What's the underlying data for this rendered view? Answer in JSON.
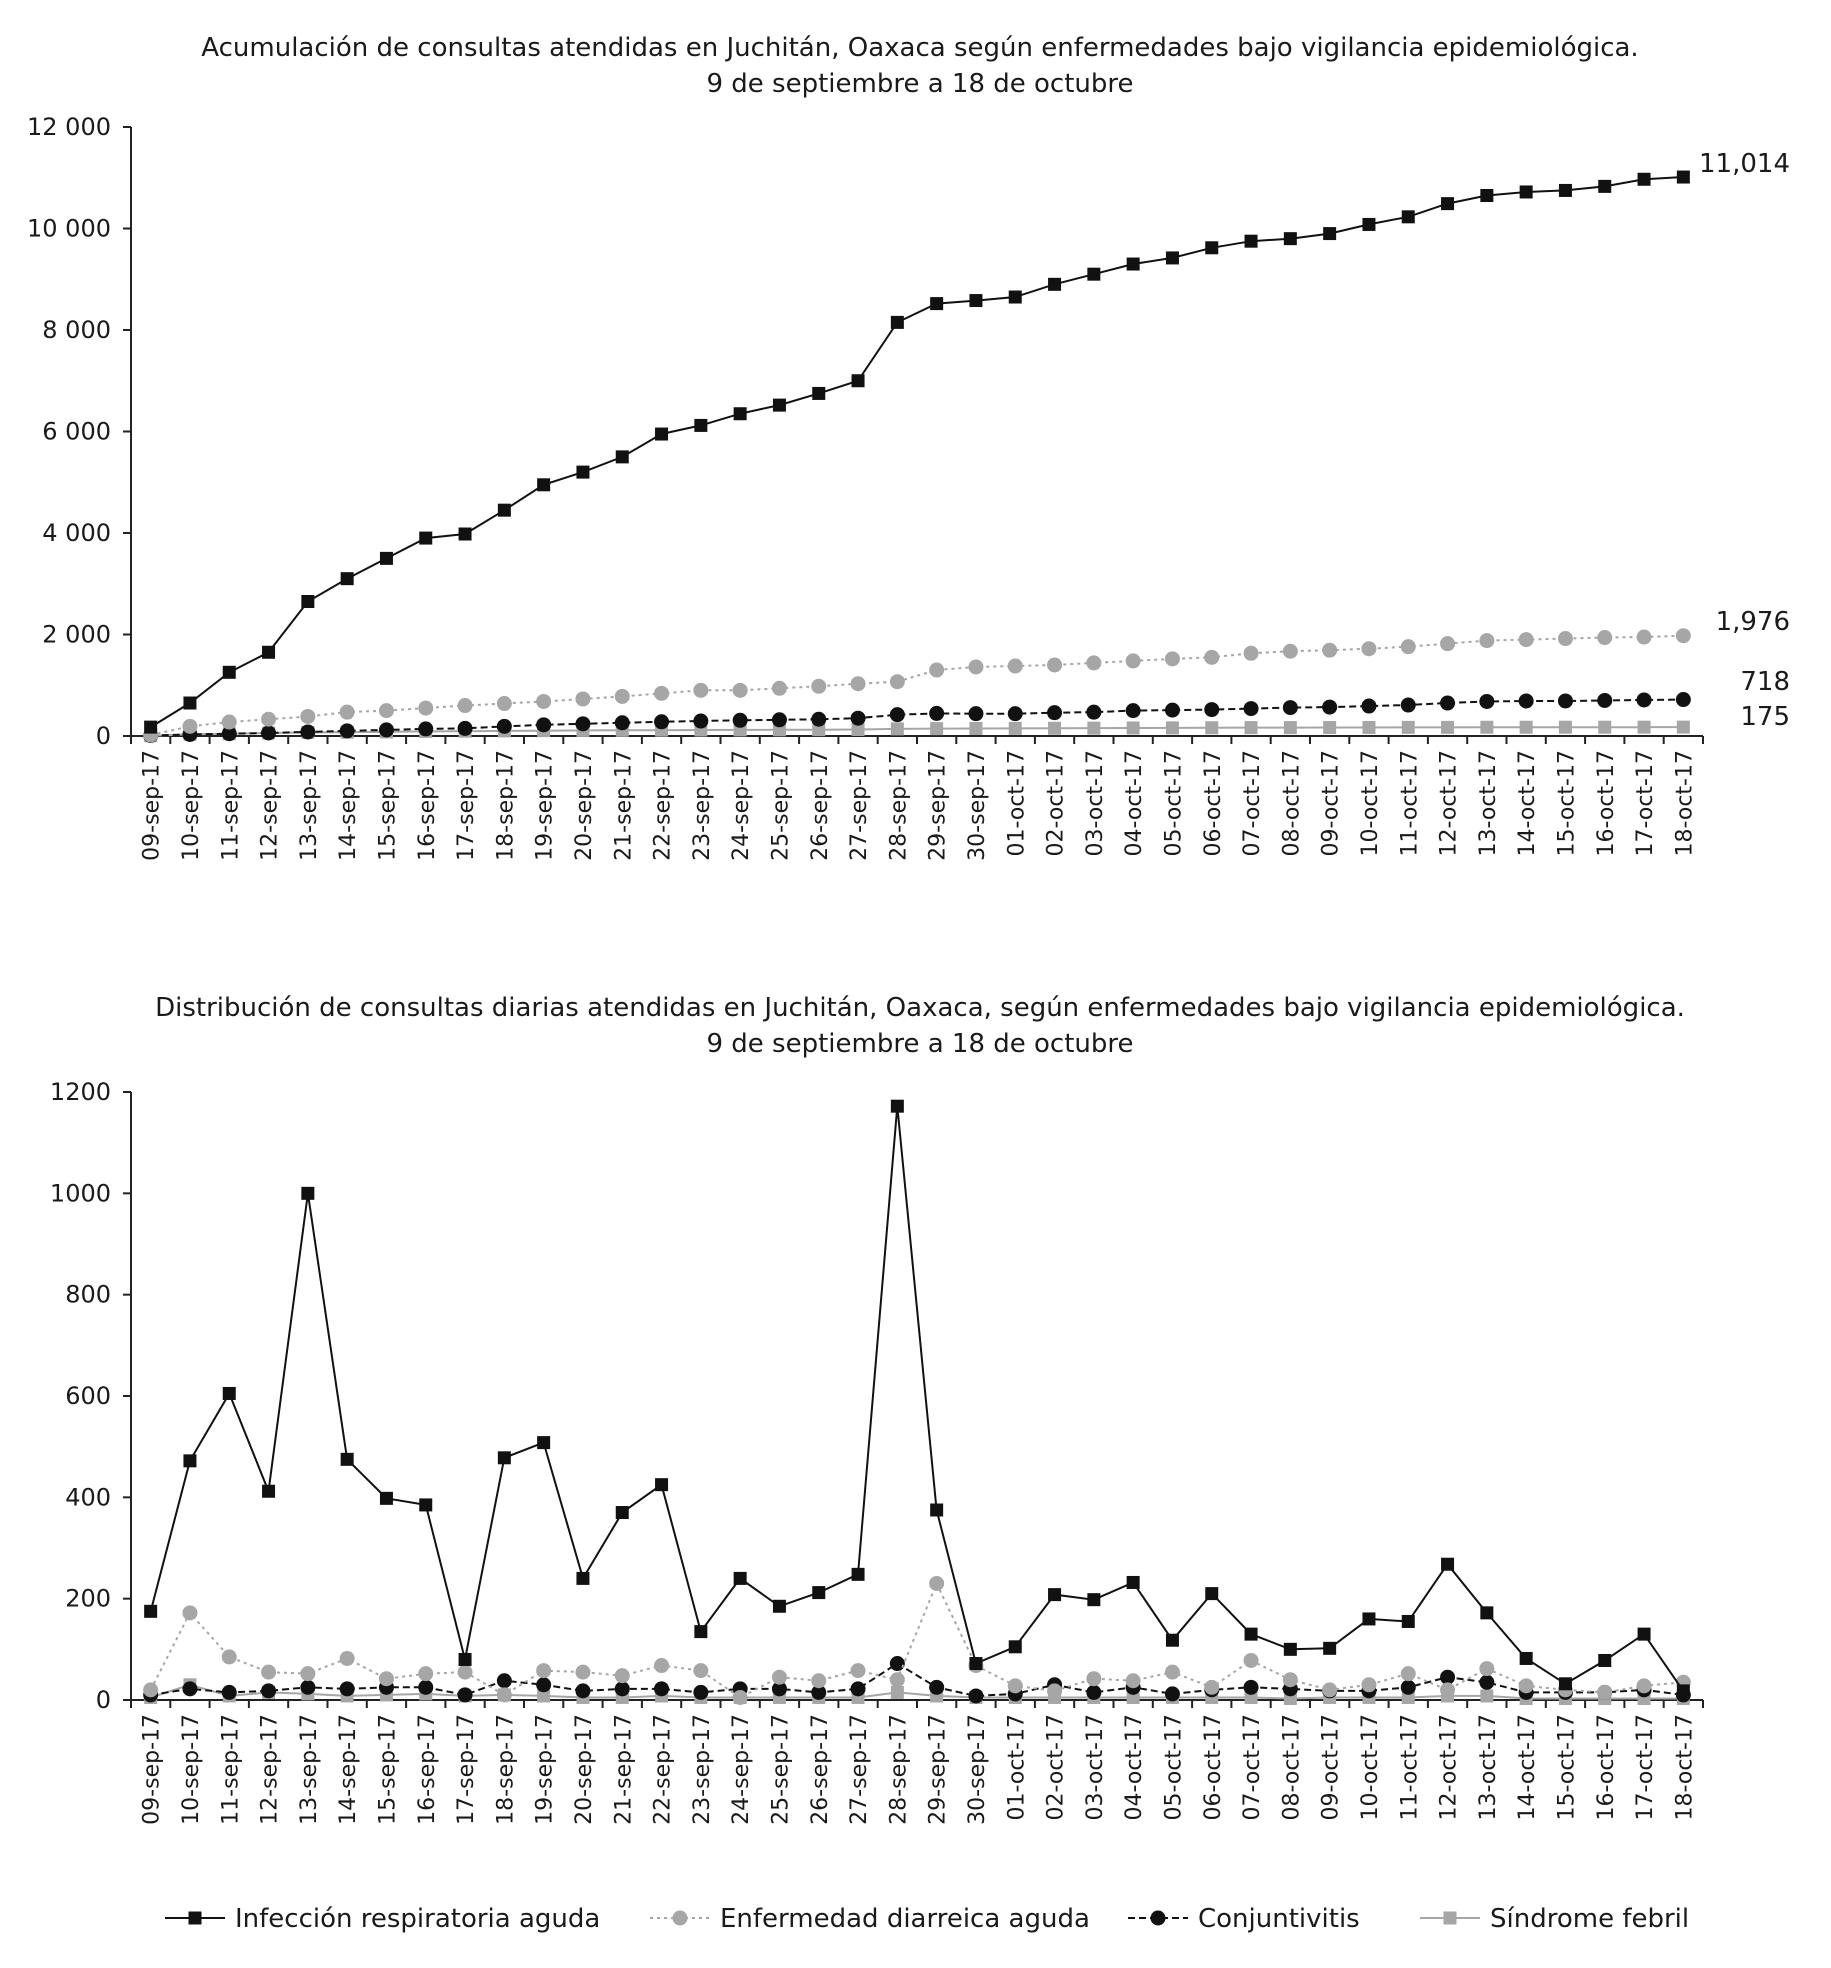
{
  "chart_data": [
    {
      "type": "line",
      "title": "Acumulación de consultas atendidas en Juchitán, Oaxaca según enfermedades bajo vigilancia epidemiológica.",
      "subtitle": "9 de septiembre a 18 de octubre",
      "xlabel": "",
      "ylabel": "",
      "ylim": [
        0,
        12000
      ],
      "yticks": [
        0,
        2000,
        4000,
        6000,
        8000,
        10000,
        12000
      ],
      "ytick_labels": [
        "0",
        "2 000",
        "4 000",
        "6 000",
        "8 000",
        "10 000",
        "12 000"
      ],
      "grid": false,
      "categories": [
        "09-sep-17",
        "10-sep-17",
        "11-sep-17",
        "12-sep-17",
        "13-sep-17",
        "14-sep-17",
        "15-sep-17",
        "16-sep-17",
        "17-sep-17",
        "18-sep-17",
        "19-sep-17",
        "20-sep-17",
        "21-sep-17",
        "22-sep-17",
        "23-sep-17",
        "24-sep-17",
        "25-sep-17",
        "26-sep-17",
        "27-sep-17",
        "28-sep-17",
        "29-sep-17",
        "30-sep-17",
        "01-oct-17",
        "02-oct-17",
        "03-oct-17",
        "04-oct-17",
        "05-oct-17",
        "06-oct-17",
        "07-oct-17",
        "08-oct-17",
        "09-oct-17",
        "10-oct-17",
        "11-oct-17",
        "12-oct-17",
        "13-oct-17",
        "14-oct-17",
        "15-oct-17",
        "16-oct-17",
        "17-oct-17",
        "18-oct-17"
      ],
      "series": [
        {
          "name": "Infección respiratoria aguda",
          "color": "#111111",
          "marker": "square",
          "dash": "solid",
          "values": [
            175,
            650,
            1255,
            1650,
            2650,
            3100,
            3500,
            3900,
            3980,
            4450,
            4950,
            5200,
            5500,
            5950,
            6120,
            6350,
            6520,
            6750,
            7000,
            8150,
            8520,
            8580,
            8650,
            8900,
            9100,
            9300,
            9420,
            9620,
            9750,
            9800,
            9900,
            10080,
            10230,
            10490,
            10650,
            10720,
            10750,
            10830,
            10970,
            11014
          ],
          "end_label": "11,014"
        },
        {
          "name": "Enfermedad diarreica aguda",
          "color": "#a6a6a6",
          "marker": "circle",
          "dash": "dotted",
          "values": [
            20,
            190,
            275,
            330,
            385,
            470,
            500,
            550,
            600,
            640,
            680,
            730,
            780,
            840,
            900,
            900,
            940,
            980,
            1030,
            1070,
            1300,
            1360,
            1380,
            1400,
            1440,
            1480,
            1520,
            1550,
            1630,
            1670,
            1690,
            1720,
            1760,
            1820,
            1880,
            1900,
            1920,
            1940,
            1950,
            1976
          ],
          "end_label": "1,976"
        },
        {
          "name": "Conjuntivitis",
          "color": "#111111",
          "marker": "circle",
          "dash": "dashed",
          "values": [
            10,
            30,
            45,
            60,
            80,
            100,
            120,
            140,
            150,
            190,
            220,
            240,
            260,
            280,
            295,
            310,
            320,
            330,
            350,
            420,
            445,
            440,
            440,
            460,
            470,
            500,
            510,
            520,
            540,
            560,
            570,
            590,
            610,
            650,
            680,
            690,
            690,
            700,
            710,
            718
          ],
          "end_label": "718"
        },
        {
          "name": "Síndrome febril",
          "color": "#a6a6a6",
          "marker": "square",
          "dash": "solid",
          "values": [
            5,
            35,
            45,
            60,
            70,
            75,
            80,
            90,
            95,
            100,
            105,
            110,
            112,
            115,
            118,
            120,
            122,
            125,
            128,
            140,
            145,
            148,
            150,
            152,
            155,
            158,
            160,
            162,
            165,
            165,
            167,
            168,
            170,
            170,
            172,
            172,
            173,
            173,
            174,
            175
          ],
          "end_label": "175"
        }
      ]
    },
    {
      "type": "line",
      "title": "Distribución de consultas diarias atendidas en Juchitán, Oaxaca, según enfermedades bajo vigilancia epidemiológica.",
      "subtitle": "9 de septiembre a 18 de octubre",
      "xlabel": "",
      "ylabel": "",
      "ylim": [
        0,
        1200
      ],
      "yticks": [
        0,
        200,
        400,
        600,
        800,
        1000,
        1200
      ],
      "ytick_labels": [
        "0",
        "200",
        "400",
        "600",
        "800",
        "1000",
        "1200"
      ],
      "grid": false,
      "legend": "bottom",
      "categories": [
        "09-sep-17",
        "10-sep-17",
        "11-sep-17",
        "12-sep-17",
        "13-sep-17",
        "14-sep-17",
        "15-sep-17",
        "16-sep-17",
        "17-sep-17",
        "18-sep-17",
        "19-sep-17",
        "20-sep-17",
        "21-sep-17",
        "22-sep-17",
        "23-sep-17",
        "24-sep-17",
        "25-sep-17",
        "26-sep-17",
        "27-sep-17",
        "28-sep-17",
        "29-sep-17",
        "30-sep-17",
        "01-oct-17",
        "02-oct-17",
        "03-oct-17",
        "04-oct-17",
        "05-oct-17",
        "06-oct-17",
        "07-oct-17",
        "08-oct-17",
        "09-oct-17",
        "10-oct-17",
        "11-oct-17",
        "12-oct-17",
        "13-oct-17",
        "14-oct-17",
        "15-oct-17",
        "16-oct-17",
        "17-oct-17",
        "18-oct-17"
      ],
      "series": [
        {
          "name": "Infección respiratoria aguda",
          "color": "#111111",
          "marker": "square",
          "dash": "solid",
          "values": [
            175,
            472,
            605,
            412,
            1000,
            475,
            398,
            385,
            80,
            478,
            508,
            240,
            370,
            425,
            135,
            240,
            185,
            212,
            248,
            1172,
            375,
            72,
            105,
            208,
            198,
            232,
            118,
            210,
            130,
            100,
            102,
            160,
            155,
            268,
            172,
            82,
            32,
            78,
            130,
            18
          ]
        },
        {
          "name": "Enfermedad diarreica aguda",
          "color": "#a6a6a6",
          "marker": "circle",
          "dash": "dotted",
          "values": [
            20,
            172,
            85,
            55,
            52,
            82,
            42,
            52,
            55,
            10,
            58,
            55,
            48,
            68,
            58,
            5,
            45,
            38,
            58,
            40,
            230,
            68,
            28,
            18,
            42,
            38,
            55,
            25,
            78,
            40,
            20,
            30,
            52,
            20,
            62,
            28,
            20,
            15,
            28,
            35
          ]
        },
        {
          "name": "Conjuntivitis",
          "color": "#111111",
          "marker": "circle",
          "dash": "dashed",
          "values": [
            10,
            22,
            15,
            18,
            25,
            22,
            25,
            25,
            10,
            38,
            30,
            18,
            22,
            22,
            15,
            22,
            22,
            15,
            22,
            72,
            25,
            8,
            12,
            30,
            15,
            25,
            12,
            20,
            25,
            22,
            18,
            18,
            25,
            45,
            35,
            15,
            15,
            15,
            20,
            10
          ]
        },
        {
          "name": "Síndrome febril",
          "color": "#a6a6a6",
          "marker": "square",
          "dash": "solid",
          "values": [
            5,
            30,
            8,
            15,
            12,
            8,
            10,
            12,
            8,
            10,
            8,
            5,
            5,
            8,
            5,
            5,
            5,
            5,
            5,
            15,
            8,
            5,
            5,
            5,
            5,
            5,
            5,
            5,
            5,
            3,
            5,
            5,
            5,
            8,
            8,
            3,
            3,
            3,
            3,
            3
          ]
        }
      ]
    }
  ]
}
